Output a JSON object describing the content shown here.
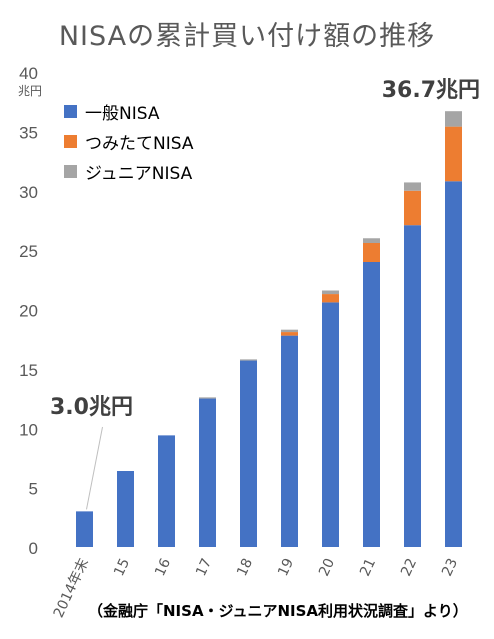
{
  "title": "NISAの累計買い付け額の推移",
  "source": "（金融庁「NISA・ジュニアNISA利用状況調査」より）",
  "annotations": {
    "first": "3.0兆円",
    "last": "36.7兆円"
  },
  "chart_data": {
    "type": "bar",
    "stacked": true,
    "categories": [
      "2014年末",
      "15",
      "16",
      "17",
      "18",
      "19",
      "20",
      "21",
      "22",
      "23"
    ],
    "series": [
      {
        "name": "一般NISA",
        "color": "#4472C4",
        "values": [
          3.0,
          6.4,
          9.4,
          12.5,
          15.7,
          17.8,
          20.6,
          24.0,
          27.1,
          30.8
        ]
      },
      {
        "name": "つみたてNISA",
        "color": "#ED7D31",
        "values": [
          0,
          0,
          0,
          0,
          0,
          0.3,
          0.7,
          1.6,
          2.9,
          4.6
        ]
      },
      {
        "name": "ジュニアNISA",
        "color": "#A5A5A5",
        "values": [
          0,
          0,
          0.0,
          0.1,
          0.1,
          0.2,
          0.3,
          0.4,
          0.7,
          1.3
        ]
      }
    ],
    "ylim": [
      0,
      40
    ],
    "yticks": [
      0,
      5,
      10,
      15,
      20,
      25,
      30,
      35,
      40
    ],
    "ylabel": "兆円",
    "grid": false,
    "legend": "top-left"
  }
}
